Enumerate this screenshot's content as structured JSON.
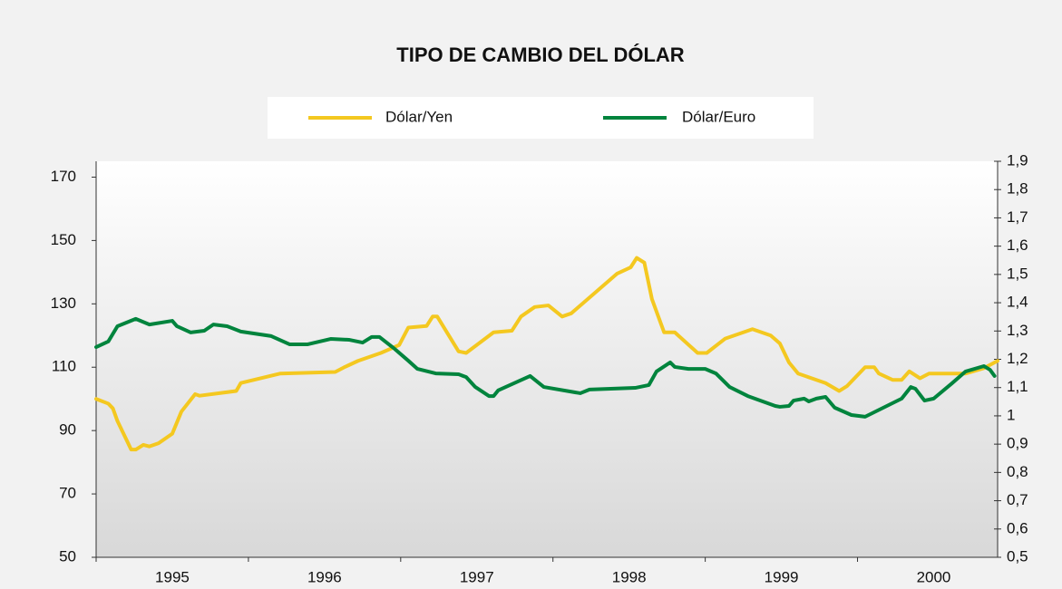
{
  "chart_data": {
    "type": "line",
    "title": "TIPO DE CAMBIO DEL DÓLAR",
    "xlim": [
      1995,
      2000.92
    ],
    "xticks": [
      {
        "value": 1995.5,
        "label": "1995"
      },
      {
        "value": 1996.5,
        "label": "1996"
      },
      {
        "value": 1997.5,
        "label": "1997"
      },
      {
        "value": 1998.5,
        "label": "1998"
      },
      {
        "value": 1999.5,
        "label": "1999"
      },
      {
        "value": 2000.5,
        "label": "2000"
      }
    ],
    "ylim": [
      50,
      175
    ],
    "yticks": [
      50,
      70,
      90,
      110,
      130,
      150,
      170
    ],
    "y2lim": [
      0.5,
      1.9
    ],
    "y2ticks": [
      {
        "value": 0.5,
        "label": "0,5"
      },
      {
        "value": 0.6,
        "label": "0,6"
      },
      {
        "value": 0.7,
        "label": "0,7"
      },
      {
        "value": 0.8,
        "label": "0,8"
      },
      {
        "value": 0.9,
        "label": "0,9"
      },
      1,
      {
        "value": 1.1,
        "label": "1,1"
      },
      {
        "value": 1.2,
        "label": "1,2"
      },
      {
        "value": 1.3,
        "label": "1,3"
      },
      {
        "value": 1.4,
        "label": "1,4"
      },
      {
        "value": 1.5,
        "label": "1,5"
      },
      {
        "value": 1.6,
        "label": "1,6"
      },
      {
        "value": 1.7,
        "label": "1,7"
      },
      {
        "value": 1.8,
        "label": "1,8"
      },
      {
        "value": 1.9,
        "label": "1,9"
      }
    ],
    "legend": "top",
    "series": [
      {
        "name": "Dólar/Yen",
        "color": "#f4c820",
        "x": [
          1995.0,
          1995.08,
          1995.11,
          1995.14,
          1995.23,
          1995.26,
          1995.31,
          1995.35,
          1995.41,
          1995.5,
          1995.56,
          1995.65,
          1995.68,
          1995.92,
          1995.95,
          1996.21,
          1996.57,
          1996.63,
          1996.72,
          1996.87,
          1996.99,
          1997.05,
          1997.17,
          1997.21,
          1997.24,
          1997.38,
          1997.43,
          1997.61,
          1997.73,
          1997.79,
          1997.88,
          1997.97,
          1998.06,
          1998.12,
          1998.3,
          1998.42,
          1998.51,
          1998.55,
          1998.6,
          1998.65,
          1998.73,
          1998.8,
          1998.95,
          1999.01,
          1999.13,
          1999.31,
          1999.43,
          1999.49,
          1999.55,
          1999.61,
          1999.7,
          1999.79,
          1999.88,
          1999.93,
          2000.05,
          2000.11,
          2000.14,
          2000.23,
          2000.29,
          2000.34,
          2000.41,
          2000.47,
          2000.71,
          2000.83,
          2000.92
        ],
        "values": [
          100,
          98.5,
          97,
          93,
          84,
          84,
          85.5,
          85,
          86,
          89,
          96,
          101.5,
          101,
          102.5,
          105,
          108,
          108.5,
          110,
          112,
          114.5,
          117,
          122.5,
          123,
          126,
          126,
          115,
          114.5,
          121,
          121.5,
          126,
          129,
          129.5,
          126,
          127,
          134.5,
          139.5,
          141.5,
          144.5,
          143,
          131.5,
          121,
          121,
          114.5,
          114.5,
          119,
          122,
          120,
          117.5,
          111.5,
          108,
          106.5,
          105,
          102.5,
          104,
          110,
          110,
          108,
          106,
          106,
          108.7,
          106.5,
          108,
          108,
          109.7,
          112
        ]
      },
      {
        "name": "Dólar/Euro",
        "color": "#00843d",
        "axis": "y2",
        "x": [
          1995.0,
          1995.08,
          1995.14,
          1995.26,
          1995.35,
          1995.5,
          1995.53,
          1995.62,
          1995.71,
          1995.77,
          1995.86,
          1995.95,
          1996.15,
          1996.27,
          1996.39,
          1996.54,
          1996.66,
          1996.75,
          1996.81,
          1996.86,
          1996.96,
          1997.05,
          1997.11,
          1997.23,
          1997.38,
          1997.43,
          1997.49,
          1997.58,
          1997.61,
          1997.64,
          1997.85,
          1997.94,
          1998.18,
          1998.24,
          1998.54,
          1998.63,
          1998.68,
          1998.77,
          1998.8,
          1998.89,
          1999.0,
          1999.07,
          1999.16,
          1999.28,
          1999.46,
          1999.49,
          1999.55,
          1999.58,
          1999.65,
          1999.68,
          1999.73,
          1999.79,
          1999.85,
          1999.96,
          2000.05,
          2000.11,
          2000.29,
          2000.35,
          2000.38,
          2000.44,
          2000.5,
          2000.62,
          2000.71,
          2000.83,
          2000.87,
          2000.9
        ],
        "values": [
          1.243,
          1.263,
          1.317,
          1.343,
          1.323,
          1.336,
          1.317,
          1.295,
          1.301,
          1.323,
          1.317,
          1.298,
          1.282,
          1.253,
          1.253,
          1.272,
          1.269,
          1.259,
          1.279,
          1.279,
          1.237,
          1.195,
          1.166,
          1.15,
          1.147,
          1.137,
          1.102,
          1.07,
          1.07,
          1.09,
          1.141,
          1.102,
          1.08,
          1.093,
          1.099,
          1.109,
          1.157,
          1.189,
          1.173,
          1.166,
          1.166,
          1.15,
          1.102,
          1.07,
          1.035,
          1.032,
          1.035,
          1.054,
          1.061,
          1.051,
          1.061,
          1.067,
          1.029,
          1.003,
          0.997,
          1.013,
          1.061,
          1.102,
          1.096,
          1.054,
          1.061,
          1.115,
          1.157,
          1.176,
          1.163,
          1.141
        ]
      }
    ]
  }
}
